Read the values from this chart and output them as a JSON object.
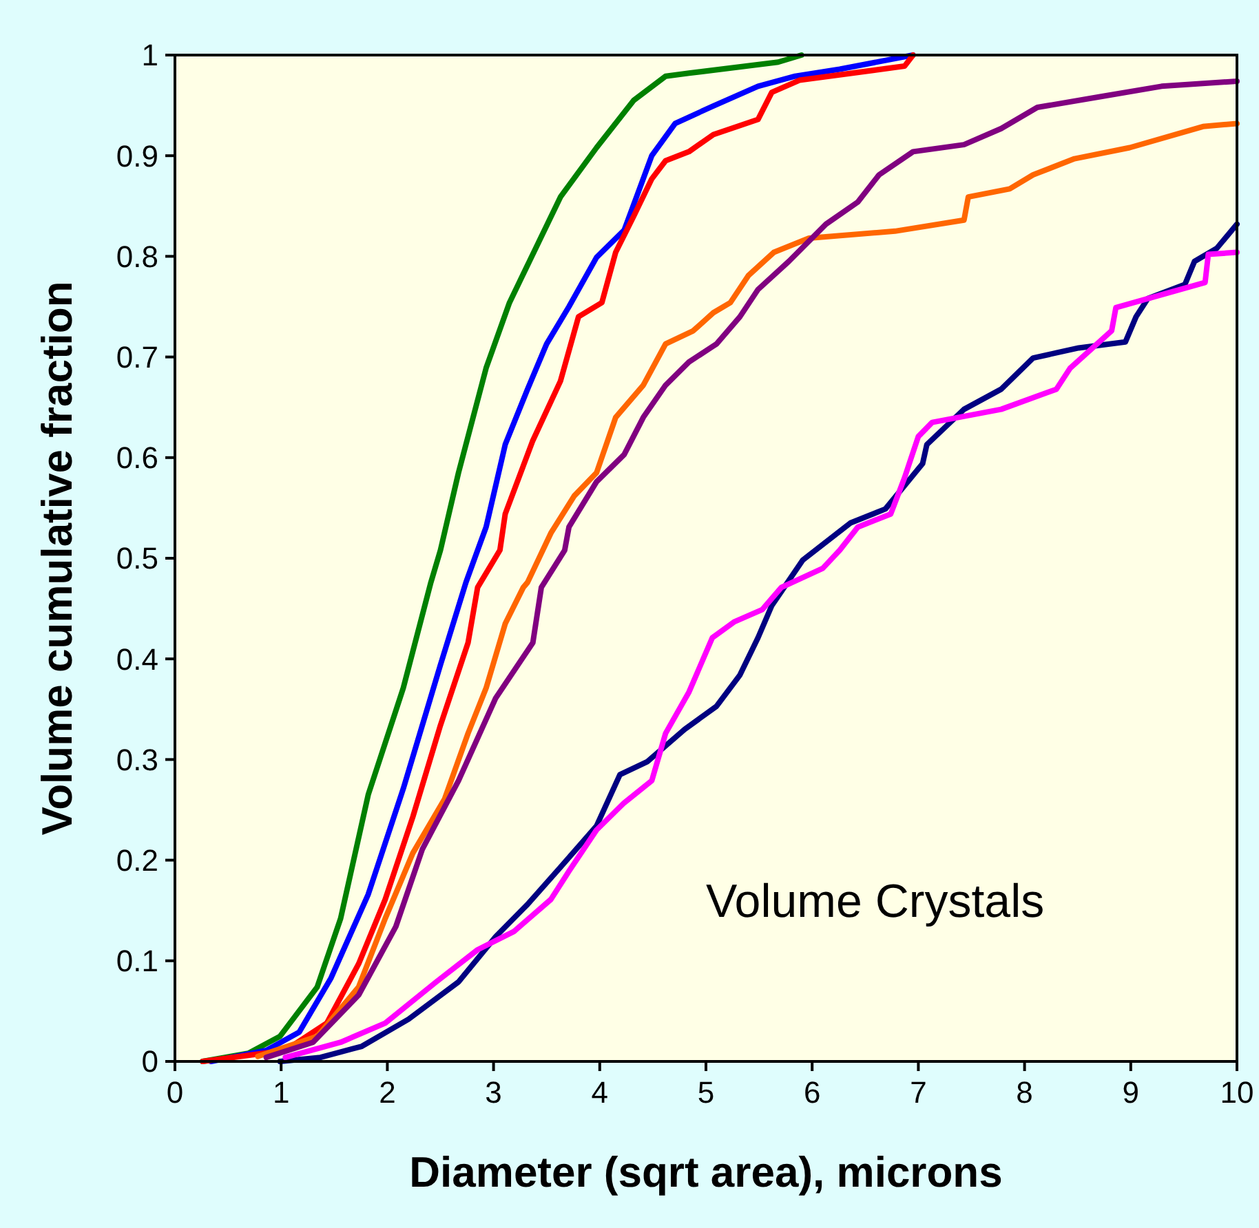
{
  "chart_data": {
    "type": "line",
    "xlabel": "Diameter (sqrt area), microns",
    "ylabel": "Volume cumulative fraction",
    "annotations": [
      "Volume Crystals"
    ],
    "xlim": [
      0,
      10
    ],
    "xticks": [
      0,
      1,
      2,
      3,
      4,
      5,
      6,
      7,
      8,
      9,
      10
    ],
    "ylim": [
      0,
      1
    ],
    "yticks": [
      0,
      0.1,
      0.2,
      0.3,
      0.4,
      0.5,
      0.6,
      0.7,
      0.8,
      0.9,
      1
    ],
    "grid": false,
    "marker": "none",
    "line_style": "solid",
    "series": [
      {
        "color": "#008000",
        "x": [
          0.26,
          0.69,
          0.99,
          1.34,
          1.56,
          1.82,
          2.15,
          2.41,
          2.5,
          2.67,
          2.93,
          3.15,
          3.63,
          3.97,
          4.32,
          4.62,
          4.84,
          5.68,
          5.9
        ],
        "values": [
          0,
          0.008,
          0.025,
          0.074,
          0.142,
          0.265,
          0.371,
          0.476,
          0.508,
          0.585,
          0.689,
          0.754,
          0.859,
          0.908,
          0.955,
          0.979,
          0.982,
          0.993,
          1.0
        ]
      },
      {
        "color": "#0000ff",
        "x": [
          0.34,
          0.86,
          1.17,
          1.47,
          1.82,
          2.15,
          2.5,
          2.74,
          2.85,
          2.93,
          3.11,
          3.32,
          3.5,
          3.71,
          3.97,
          4.23,
          4.36,
          4.49,
          4.71,
          5.06,
          5.49,
          5.84,
          6.26,
          6.95
        ],
        "values": [
          0,
          0.011,
          0.029,
          0.083,
          0.166,
          0.271,
          0.394,
          0.476,
          0.508,
          0.531,
          0.613,
          0.668,
          0.713,
          0.75,
          0.799,
          0.826,
          0.863,
          0.9,
          0.932,
          0.949,
          0.969,
          0.979,
          0.986,
          1.0
        ]
      },
      {
        "color": "#ff0000",
        "x": [
          0.26,
          1.04,
          1.43,
          1.73,
          1.98,
          2.24,
          2.5,
          2.76,
          2.85,
          3.06,
          3.11,
          3.37,
          3.63,
          3.8,
          4.02,
          4.15,
          4.32,
          4.49,
          4.62,
          4.84,
          5.07,
          5.49,
          5.62,
          5.88,
          6.87,
          6.95
        ],
        "values": [
          0,
          0.011,
          0.038,
          0.097,
          0.161,
          0.243,
          0.334,
          0.416,
          0.471,
          0.508,
          0.544,
          0.617,
          0.676,
          0.74,
          0.754,
          0.804,
          0.84,
          0.877,
          0.895,
          0.904,
          0.921,
          0.936,
          0.963,
          0.975,
          0.989,
          1.0
        ]
      },
      {
        "color": "#ff6600",
        "x": [
          0.78,
          1.34,
          1.73,
          1.98,
          2.24,
          2.54,
          2.76,
          2.93,
          3.11,
          3.28,
          3.32,
          3.54,
          3.76,
          3.97,
          4.15,
          4.41,
          4.62,
          4.88,
          5.07,
          5.23,
          5.4,
          5.64,
          5.97,
          6.78,
          7.43,
          7.47,
          7.86,
          8.08,
          8.47,
          8.99,
          9.68,
          10
        ],
        "values": [
          0.005,
          0.025,
          0.074,
          0.142,
          0.207,
          0.261,
          0.326,
          0.371,
          0.435,
          0.471,
          0.476,
          0.525,
          0.562,
          0.585,
          0.64,
          0.672,
          0.713,
          0.726,
          0.744,
          0.754,
          0.781,
          0.804,
          0.818,
          0.825,
          0.836,
          0.859,
          0.867,
          0.881,
          0.897,
          0.908,
          0.929,
          0.932
        ]
      },
      {
        "color": "#800080",
        "x": [
          0.86,
          1.3,
          1.73,
          2.08,
          2.33,
          2.67,
          3.02,
          3.37,
          3.45,
          3.67,
          3.71,
          3.97,
          4.23,
          4.41,
          4.62,
          4.84,
          5.1,
          5.32,
          5.49,
          5.78,
          6.13,
          6.43,
          6.63,
          6.95,
          7.43,
          7.78,
          8.12,
          8.73,
          9.29,
          10
        ],
        "values": [
          0.004,
          0.019,
          0.066,
          0.134,
          0.211,
          0.279,
          0.361,
          0.416,
          0.471,
          0.508,
          0.531,
          0.576,
          0.603,
          0.64,
          0.672,
          0.695,
          0.713,
          0.74,
          0.767,
          0.795,
          0.832,
          0.854,
          0.881,
          0.904,
          0.911,
          0.927,
          0.948,
          0.959,
          0.969,
          0.974
        ]
      },
      {
        "color": "#000080",
        "x": [
          0.99,
          1.37,
          1.76,
          2.2,
          2.67,
          3.02,
          3.32,
          3.63,
          3.97,
          4.19,
          4.45,
          4.8,
          5.1,
          5.32,
          5.49,
          5.62,
          5.91,
          6.36,
          6.69,
          7.04,
          7.08,
          7.43,
          7.78,
          8.08,
          8.51,
          8.95,
          9.05,
          9.16,
          9.51,
          9.6,
          9.81,
          10
        ],
        "values": [
          0,
          0.004,
          0.015,
          0.042,
          0.079,
          0.124,
          0.156,
          0.193,
          0.234,
          0.285,
          0.298,
          0.33,
          0.353,
          0.384,
          0.421,
          0.453,
          0.498,
          0.535,
          0.549,
          0.594,
          0.613,
          0.648,
          0.668,
          0.699,
          0.709,
          0.715,
          0.74,
          0.758,
          0.772,
          0.795,
          0.808,
          0.832
        ]
      },
      {
        "color": "#ff00ff",
        "x": [
          1.04,
          1.56,
          1.98,
          2.46,
          2.85,
          3.19,
          3.54,
          3.71,
          3.97,
          4.23,
          4.49,
          4.62,
          4.84,
          5.06,
          5.27,
          5.53,
          5.71,
          6.1,
          6.26,
          6.43,
          6.74,
          6.87,
          7.0,
          7.13,
          7.78,
          8.3,
          8.43,
          8.82,
          8.86,
          9.7,
          9.73,
          10
        ],
        "values": [
          0.004,
          0.019,
          0.038,
          0.079,
          0.111,
          0.129,
          0.161,
          0.189,
          0.23,
          0.257,
          0.279,
          0.326,
          0.367,
          0.421,
          0.437,
          0.449,
          0.471,
          0.49,
          0.508,
          0.531,
          0.544,
          0.58,
          0.621,
          0.635,
          0.648,
          0.668,
          0.689,
          0.726,
          0.749,
          0.774,
          0.802,
          0.804
        ]
      }
    ]
  }
}
